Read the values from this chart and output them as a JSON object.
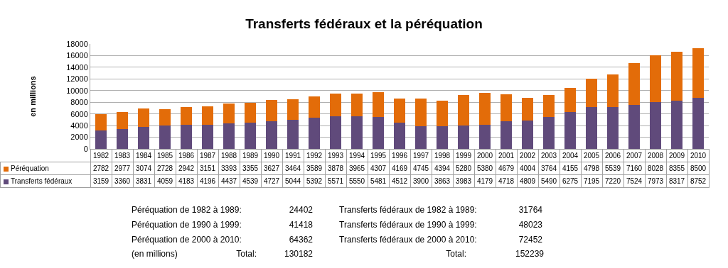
{
  "chart_data": {
    "type": "bar",
    "title": "Transferts fédéraux et la péréquation",
    "ylabel": "en millions",
    "categories": [
      "1982",
      "1983",
      "1984",
      "1985",
      "1986",
      "1987",
      "1988",
      "1989",
      "1990",
      "1991",
      "1992",
      "1993",
      "1994",
      "1995",
      "1996",
      "1997",
      "1998",
      "1999",
      "2000",
      "2001",
      "2002",
      "2003",
      "2004",
      "2005",
      "2006",
      "2007",
      "2008",
      "2009",
      "2010"
    ],
    "series": [
      {
        "name": "Transferts fédéraux",
        "color": "#604a7b",
        "values": [
          3159,
          3360,
          3831,
          4059,
          4183,
          4196,
          4437,
          4539,
          4727,
          5044,
          5392,
          5571,
          5550,
          5481,
          4512,
          3900,
          3863,
          3983,
          4179,
          4718,
          4809,
          5490,
          6275,
          7195,
          7220,
          7524,
          7973,
          8317,
          8752
        ]
      },
      {
        "name": "Péréquation",
        "color": "#e36c09",
        "values": [
          2782,
          2977,
          3074,
          2728,
          2942,
          3151,
          3393,
          3355,
          3627,
          3464,
          3589,
          3878,
          3965,
          4307,
          4169,
          4745,
          4394,
          5280,
          5380,
          4679,
          4004,
          3764,
          4155,
          4798,
          5539,
          7160,
          8028,
          8355,
          8500
        ]
      }
    ],
    "stacked": true,
    "data_labels": true,
    "grid": "y",
    "legend": "bottom",
    "ylim": [
      0,
      18000
    ],
    "yticks": [
      0,
      2000,
      4000,
      6000,
      8000,
      10000,
      12000,
      14000,
      16000,
      18000
    ],
    "annotations": [
      "Péréquation de 1982 à 1989:",
      "24402",
      "Transferts fédéraux de 1982 à 1989:",
      "31764",
      "Péréquation de 1990 à 1999:",
      "41418",
      "Transferts fédéraux de 1990 à 1999:",
      "48023",
      "Péréquation de 2000 à 2010:",
      "64362",
      "Transferts fédéraux de 2000 à 2010:",
      "72452",
      "(en millions)",
      "Total:",
      "130182",
      "Total:",
      "152239"
    ]
  }
}
